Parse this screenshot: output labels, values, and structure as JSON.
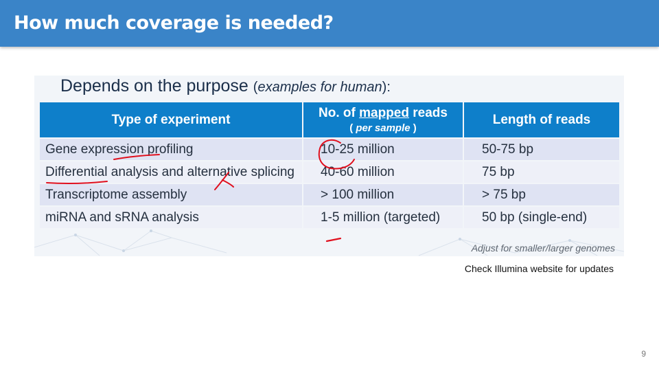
{
  "slide": {
    "title": "How much coverage is needed?",
    "subtitle_main": "Depends on the purpose",
    "subtitle_paren_open": "(",
    "subtitle_italic": "examples for human",
    "subtitle_paren_close": "):",
    "footnote": "Adjust for smaller/larger genomes",
    "update_note": "Check Illumina website for updates",
    "page_number": "9"
  },
  "table": {
    "headers": {
      "type": "Type of experiment",
      "reads_prefix": "No. of ",
      "reads_underlined": "mapped",
      "reads_suffix": " reads",
      "reads_sub_open": "( ",
      "reads_sub_italic": "per sample",
      "reads_sub_close": " )",
      "length": "Length of reads"
    },
    "rows": [
      {
        "type": "Gene expression profiling",
        "reads": "10-25 million",
        "length": "50-75 bp"
      },
      {
        "type": "Differential analysis and alternative splicing",
        "reads": "40-60 million",
        "length": "75 bp"
      },
      {
        "type": "Transcriptome assembly",
        "reads": "> 100 million",
        "length": "> 75 bp"
      },
      {
        "type": "miRNA and sRNA analysis",
        "reads": "1-5 million (targeted)",
        "length": "50 bp (single-end)"
      }
    ]
  },
  "colors": {
    "title_bar": "#3a84c8",
    "table_header": "#0e7fca",
    "row_dark": "#dfe3f3",
    "row_light": "#eef0f8",
    "annotation_ink": "#e0101e"
  }
}
